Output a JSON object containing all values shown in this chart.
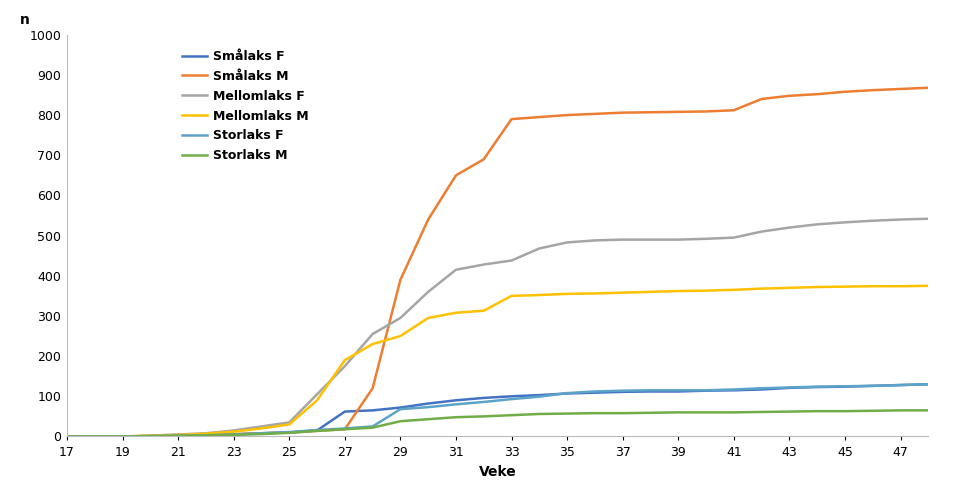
{
  "series": {
    "Smålaks F": {
      "color": "#4472C4",
      "x": [
        17,
        18,
        19,
        20,
        21,
        22,
        23,
        24,
        25,
        26,
        27,
        28,
        29,
        30,
        31,
        32,
        33,
        34,
        35,
        36,
        37,
        38,
        39,
        40,
        41,
        42,
        43,
        44,
        45,
        46,
        47,
        48
      ],
      "y": [
        0,
        0,
        0,
        1,
        2,
        3,
        5,
        8,
        10,
        15,
        62,
        65,
        72,
        82,
        90,
        96,
        100,
        103,
        107,
        109,
        111,
        112,
        112,
        114,
        115,
        117,
        121,
        123,
        124,
        126,
        128,
        130
      ]
    },
    "Smålaks M": {
      "color": "#ED7D31",
      "x": [
        17,
        18,
        19,
        20,
        21,
        22,
        23,
        24,
        25,
        26,
        27,
        28,
        29,
        30,
        31,
        32,
        33,
        34,
        35,
        36,
        37,
        38,
        39,
        40,
        41,
        42,
        43,
        44,
        45,
        46,
        47,
        48
      ],
      "y": [
        0,
        0,
        0,
        1,
        2,
        4,
        6,
        8,
        10,
        14,
        18,
        120,
        390,
        540,
        650,
        690,
        790,
        795,
        800,
        803,
        806,
        807,
        808,
        809,
        812,
        840,
        848,
        852,
        858,
        862,
        865,
        868
      ]
    },
    "Mellomlaks F": {
      "color": "#A5A5A5",
      "x": [
        17,
        18,
        19,
        20,
        21,
        22,
        23,
        24,
        25,
        26,
        27,
        28,
        29,
        30,
        31,
        32,
        33,
        34,
        35,
        36,
        37,
        38,
        39,
        40,
        41,
        42,
        43,
        44,
        45,
        46,
        47,
        48
      ],
      "y": [
        0,
        0,
        0,
        2,
        5,
        8,
        15,
        25,
        35,
        105,
        175,
        255,
        295,
        360,
        415,
        428,
        438,
        468,
        483,
        488,
        490,
        490,
        490,
        492,
        495,
        510,
        520,
        528,
        533,
        537,
        540,
        542
      ]
    },
    "Mellomlaks M": {
      "color": "#FFC000",
      "x": [
        17,
        18,
        19,
        20,
        21,
        22,
        23,
        24,
        25,
        26,
        27,
        28,
        29,
        30,
        31,
        32,
        33,
        34,
        35,
        36,
        37,
        38,
        39,
        40,
        41,
        42,
        43,
        44,
        45,
        46,
        47,
        48
      ],
      "y": [
        0,
        0,
        0,
        2,
        4,
        7,
        12,
        20,
        30,
        90,
        190,
        230,
        250,
        295,
        308,
        313,
        350,
        352,
        355,
        356,
        358,
        360,
        362,
        363,
        365,
        368,
        370,
        372,
        373,
        374,
        374,
        375
      ]
    },
    "Storlaks F": {
      "color": "#5BA3C9",
      "x": [
        17,
        18,
        19,
        20,
        21,
        22,
        23,
        24,
        25,
        26,
        27,
        28,
        29,
        30,
        31,
        32,
        33,
        34,
        35,
        36,
        37,
        38,
        39,
        40,
        41,
        42,
        43,
        44,
        45,
        46,
        47,
        48
      ],
      "y": [
        0,
        0,
        0,
        1,
        2,
        3,
        5,
        8,
        11,
        16,
        20,
        25,
        68,
        73,
        80,
        86,
        93,
        99,
        108,
        112,
        114,
        115,
        115,
        115,
        117,
        120,
        122,
        124,
        125,
        126,
        128,
        130
      ]
    },
    "Storlaks M": {
      "color": "#70AD47",
      "x": [
        17,
        18,
        19,
        20,
        21,
        22,
        23,
        24,
        25,
        26,
        27,
        28,
        29,
        30,
        31,
        32,
        33,
        34,
        35,
        36,
        37,
        38,
        39,
        40,
        41,
        42,
        43,
        44,
        45,
        46,
        47,
        48
      ],
      "y": [
        0,
        0,
        0,
        1,
        2,
        3,
        4,
        6,
        9,
        14,
        18,
        22,
        38,
        43,
        48,
        50,
        53,
        56,
        57,
        58,
        58,
        59,
        60,
        60,
        60,
        61,
        62,
        63,
        63,
        64,
        65,
        65
      ]
    }
  },
  "xlabel": "Veke",
  "ylabel": "n",
  "ylim": [
    0,
    1000
  ],
  "xlim": [
    17,
    48
  ],
  "yticks": [
    0,
    100,
    200,
    300,
    400,
    500,
    600,
    700,
    800,
    900,
    1000
  ],
  "xtick_labels": [
    "17",
    "19",
    "21",
    "23",
    "25",
    "27",
    "29",
    "31",
    "33",
    "35",
    "37",
    "39",
    "41",
    "43",
    "45",
    "47"
  ],
  "xtick_positions": [
    17,
    19,
    21,
    23,
    25,
    27,
    29,
    31,
    33,
    35,
    37,
    39,
    41,
    43,
    45,
    47
  ],
  "background_color": "#FFFFFF",
  "legend_order": [
    "Smålaks F",
    "Smålaks M",
    "Mellomlaks F",
    "Mellomlaks M",
    "Storlaks F",
    "Storlaks M"
  ]
}
